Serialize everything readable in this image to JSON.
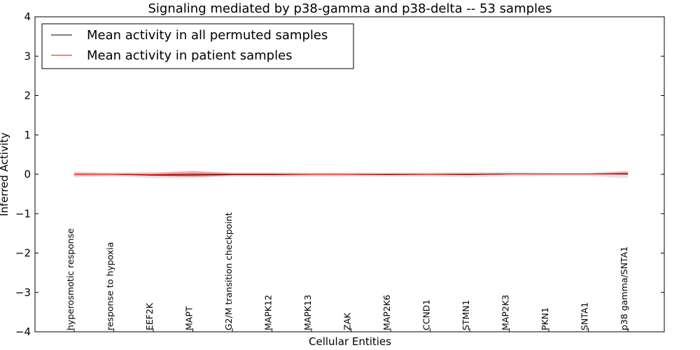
{
  "chart_data": {
    "type": "line",
    "title": "Signaling mediated by p38-gamma and p38-delta -- 53 samples",
    "xlabel": "Cellular Entities",
    "ylabel": "Inferred Activity",
    "ylim": [
      -4,
      4
    ],
    "yticks": [
      -4,
      -3,
      -2,
      -1,
      0,
      1,
      2,
      3,
      4
    ],
    "ytick_labels": [
      "−4",
      "−3",
      "−2",
      "−1",
      "0",
      "1",
      "2",
      "3",
      "4"
    ],
    "grid": false,
    "legend_position": "top-left",
    "categories": [
      "hyperosmotic response",
      "response to hypoxia",
      "EEF2K",
      "MAPT",
      "G2/M transition checkpoint",
      "MAPK12",
      "MAPK13",
      "ZAK",
      "MAP2K6",
      "CCND1",
      "STMN1",
      "MAP2K3",
      "PKN1",
      "SNTA1",
      "p38 gamma/SNTA1"
    ],
    "series": [
      {
        "name": "Mean activity in all permuted samples",
        "color": "#000000",
        "values": [
          0.0,
          0.0,
          -0.02,
          -0.02,
          -0.01,
          -0.01,
          0.0,
          0.0,
          -0.01,
          0.0,
          -0.01,
          0.01,
          0.01,
          0.01,
          0.01
        ],
        "band_lower": [
          -0.08,
          -0.05,
          -0.1,
          -0.08,
          -0.06,
          -0.07,
          -0.06,
          -0.05,
          -0.06,
          -0.06,
          -0.08,
          -0.05,
          -0.04,
          -0.04,
          -0.1
        ],
        "band_upper": [
          0.07,
          0.05,
          0.06,
          0.07,
          0.05,
          0.05,
          0.05,
          0.05,
          0.05,
          0.05,
          0.06,
          0.06,
          0.05,
          0.05,
          0.09
        ]
      },
      {
        "name": "Mean activity in patient samples",
        "color": "#ff0000",
        "values": [
          0.0,
          0.0,
          -0.01,
          0.01,
          0.0,
          0.0,
          0.0,
          0.0,
          0.0,
          0.0,
          0.0,
          0.01,
          0.01,
          0.01,
          0.02
        ],
        "band_lower": [
          -0.04,
          -0.02,
          -0.04,
          -0.08,
          -0.03,
          -0.03,
          -0.02,
          -0.02,
          -0.02,
          -0.02,
          -0.02,
          -0.01,
          -0.01,
          -0.01,
          -0.02
        ],
        "band_upper": [
          0.04,
          0.02,
          0.03,
          0.09,
          0.03,
          0.03,
          0.02,
          0.02,
          0.02,
          0.02,
          0.03,
          0.03,
          0.02,
          0.02,
          0.07
        ]
      }
    ]
  }
}
